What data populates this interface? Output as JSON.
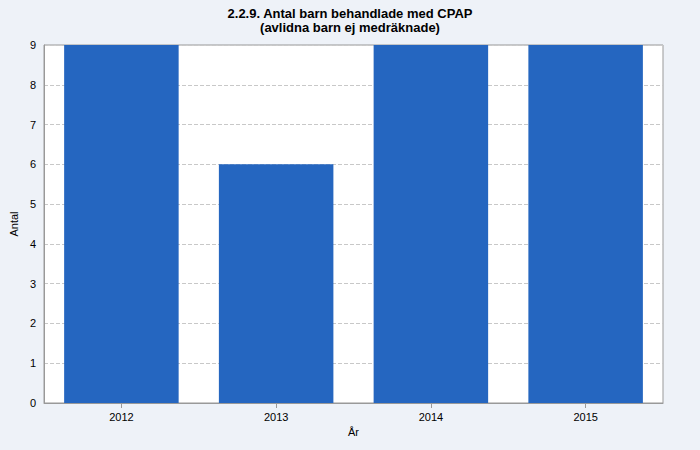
{
  "chart_data": {
    "type": "bar",
    "title": "2.2.9. Antal barn behandlade med CPAP",
    "subtitle": "(avlidna barn ej medräknade)",
    "x_label": "År",
    "y_label": "Antal",
    "categories": [
      "2012",
      "2013",
      "2014",
      "2015"
    ],
    "values": [
      9,
      6,
      9,
      9
    ],
    "color": "#2566c0",
    "ylim": [
      0,
      9
    ],
    "yticks": [
      0,
      1,
      2,
      3,
      4,
      5,
      6,
      7,
      8,
      9
    ],
    "grid": true
  }
}
